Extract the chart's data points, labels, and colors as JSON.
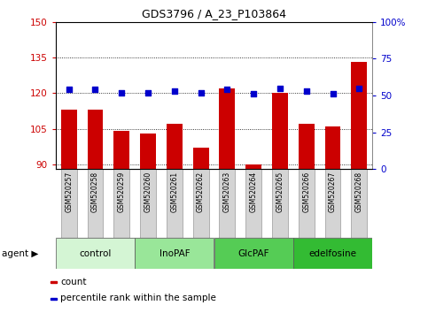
{
  "title": "GDS3796 / A_23_P103864",
  "samples": [
    "GSM520257",
    "GSM520258",
    "GSM520259",
    "GSM520260",
    "GSM520261",
    "GSM520262",
    "GSM520263",
    "GSM520264",
    "GSM520265",
    "GSM520266",
    "GSM520267",
    "GSM520268"
  ],
  "bar_values": [
    113,
    113,
    104,
    103,
    107,
    97,
    122,
    90,
    120,
    107,
    106,
    133
  ],
  "dot_values": [
    54,
    54,
    52,
    52,
    53,
    52,
    54,
    51,
    55,
    53,
    51,
    55
  ],
  "bar_color": "#cc0000",
  "dot_color": "#0000cc",
  "ylim_left": [
    88,
    150
  ],
  "ylim_right": [
    0,
    100
  ],
  "yticks_left": [
    90,
    105,
    120,
    135,
    150
  ],
  "ytick_labels_left": [
    "90",
    "105",
    "120",
    "135",
    "150"
  ],
  "yticks_right_vals": [
    0,
    25,
    50,
    75,
    100
  ],
  "ytick_labels_right": [
    "0",
    "25",
    "50",
    "75",
    "100%"
  ],
  "groups": [
    {
      "label": "control",
      "start": 0,
      "end": 3,
      "color": "#d4f5d4"
    },
    {
      "label": "InoPAF",
      "start": 3,
      "end": 6,
      "color": "#99e699"
    },
    {
      "label": "GlcPAF",
      "start": 6,
      "end": 9,
      "color": "#55cc55"
    },
    {
      "label": "edelfosine",
      "start": 9,
      "end": 12,
      "color": "#33bb33"
    }
  ],
  "legend_items": [
    {
      "label": "count",
      "color": "#cc0000"
    },
    {
      "label": "percentile rank within the sample",
      "color": "#0000cc"
    }
  ],
  "left_axis_color": "#cc0000",
  "right_axis_color": "#0000cc",
  "plot_bg": "#ffffff",
  "xtick_bg": "#d4d4d4",
  "figsize": [
    4.83,
    3.54
  ],
  "dpi": 100
}
